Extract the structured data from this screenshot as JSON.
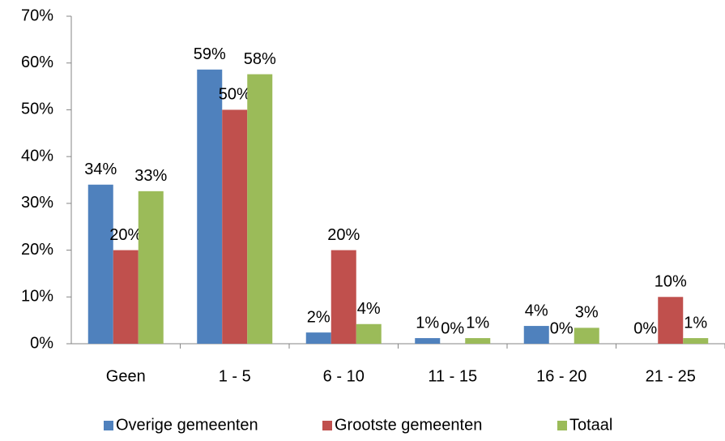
{
  "chart_data": {
    "type": "bar",
    "categories": [
      "Geen",
      "1 - 5",
      "6 - 10",
      "11 - 15",
      "16 - 20",
      "21 - 25"
    ],
    "series": [
      {
        "name": "Overige gemeenten",
        "color": "#4f81bd",
        "values": [
          34,
          58.6,
          2.4,
          1.2,
          3.8,
          0
        ],
        "value_labels": [
          "34%",
          "59%",
          "2%",
          "1%",
          "4%",
          "0%"
        ]
      },
      {
        "name": "Grootste gemeenten",
        "color": "#c0504d",
        "values": [
          20,
          50,
          20,
          0,
          0,
          10
        ],
        "value_labels": [
          "20%",
          "50%",
          "20%",
          "0%",
          "0%",
          "10%"
        ]
      },
      {
        "name": "Totaal",
        "color": "#9bbb59",
        "values": [
          32.6,
          57.6,
          4.2,
          1.2,
          3.4,
          1.2
        ],
        "value_labels": [
          "33%",
          "58%",
          "4%",
          "1%",
          "3%",
          "1%"
        ]
      }
    ],
    "ylim": [
      0,
      70
    ],
    "yticks": [
      {
        "value": 0,
        "label": "0%"
      },
      {
        "value": 10,
        "label": "10%"
      },
      {
        "value": 20,
        "label": "20%"
      },
      {
        "value": 30,
        "label": "30%"
      },
      {
        "value": 40,
        "label": "40%"
      },
      {
        "value": 50,
        "label": "50%"
      },
      {
        "value": 60,
        "label": "60%"
      },
      {
        "value": 70,
        "label": "70%"
      }
    ],
    "grid": false,
    "legend": "bottom"
  }
}
